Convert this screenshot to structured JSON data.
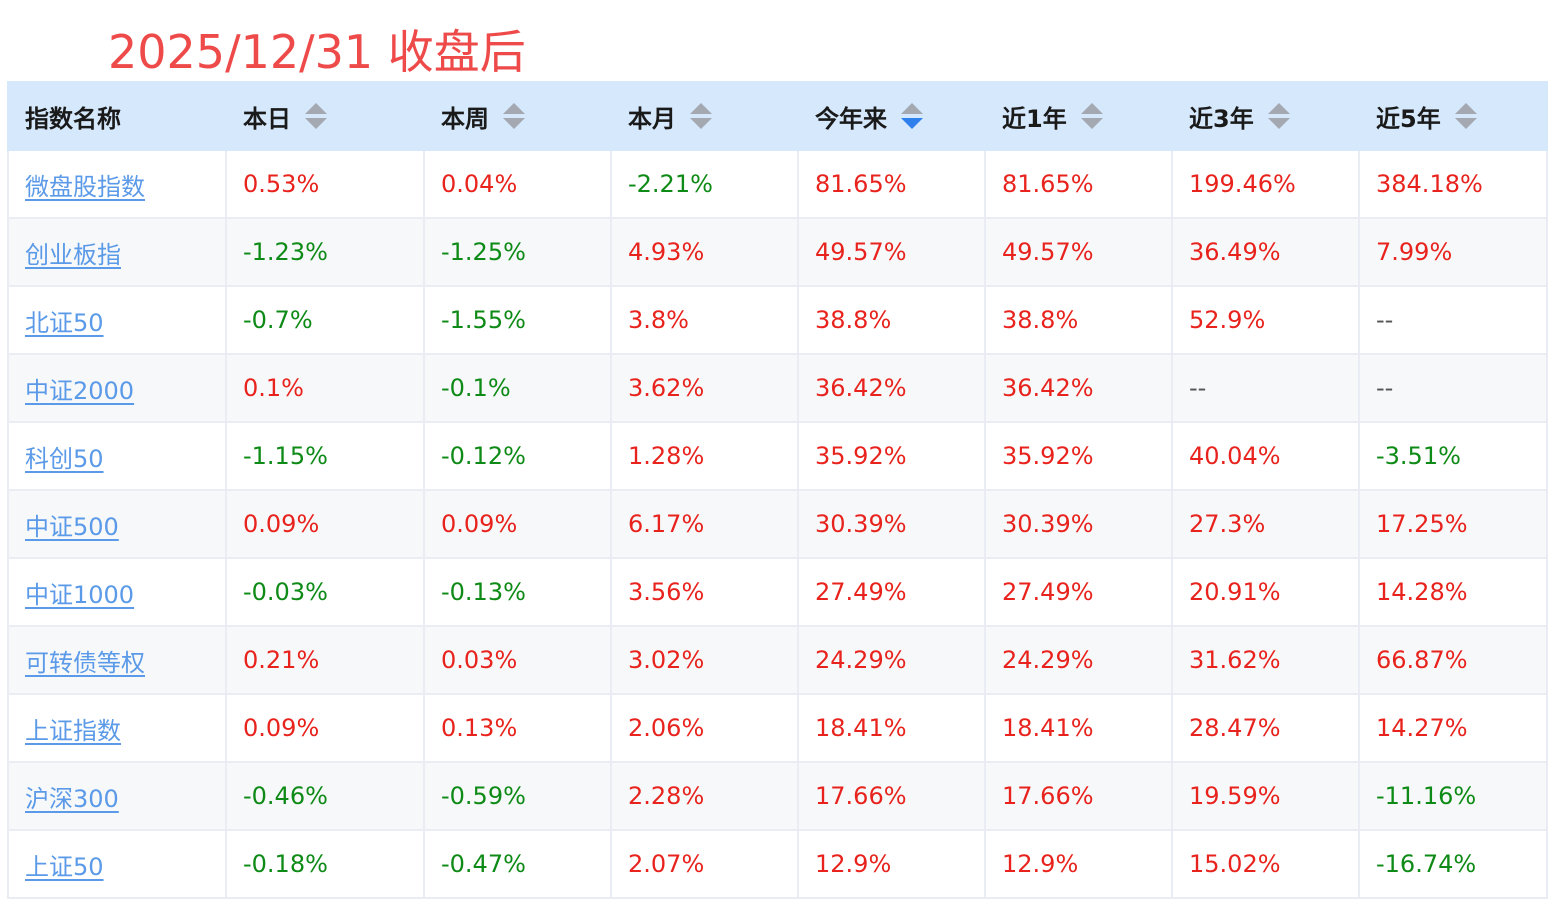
{
  "caption": "2025/12/31 收盘后",
  "headers": [
    {
      "label": "指数名称",
      "sortable": false
    },
    {
      "label": "本日",
      "sortable": true,
      "sort": "none"
    },
    {
      "label": "本周",
      "sortable": true,
      "sort": "none"
    },
    {
      "label": "本月",
      "sortable": true,
      "sort": "none"
    },
    {
      "label": "今年来",
      "sortable": true,
      "sort": "desc"
    },
    {
      "label": "近1年",
      "sortable": true,
      "sort": "none"
    },
    {
      "label": "近3年",
      "sortable": true,
      "sort": "none"
    },
    {
      "label": "近5年",
      "sortable": true,
      "sort": "none"
    }
  ],
  "colors": {
    "positive": "#e8231d",
    "negative": "#0e8a16",
    "link": "#5b9ae8",
    "caption": "#ee4a4a",
    "header_bg": "#d5e8fc",
    "sort_active": "#2f80ed"
  },
  "rows": [
    {
      "name": "微盘股指数",
      "values": [
        "0.53%",
        "0.04%",
        "-2.21%",
        "81.65%",
        "81.65%",
        "199.46%",
        "384.18%"
      ]
    },
    {
      "name": "创业板指",
      "values": [
        "-1.23%",
        "-1.25%",
        "4.93%",
        "49.57%",
        "49.57%",
        "36.49%",
        "7.99%"
      ]
    },
    {
      "name": "北证50",
      "values": [
        "-0.7%",
        "-1.55%",
        "3.8%",
        "38.8%",
        "38.8%",
        "52.9%",
        "--"
      ]
    },
    {
      "name": "中证2000",
      "values": [
        "0.1%",
        "-0.1%",
        "3.62%",
        "36.42%",
        "36.42%",
        "--",
        "--"
      ]
    },
    {
      "name": "科创50",
      "values": [
        "-1.15%",
        "-0.12%",
        "1.28%",
        "35.92%",
        "35.92%",
        "40.04%",
        "-3.51%"
      ]
    },
    {
      "name": "中证500",
      "values": [
        "0.09%",
        "0.09%",
        "6.17%",
        "30.39%",
        "30.39%",
        "27.3%",
        "17.25%"
      ]
    },
    {
      "name": "中证1000",
      "values": [
        "-0.03%",
        "-0.13%",
        "3.56%",
        "27.49%",
        "27.49%",
        "20.91%",
        "14.28%"
      ]
    },
    {
      "name": "可转债等权",
      "values": [
        "0.21%",
        "0.03%",
        "3.02%",
        "24.29%",
        "24.29%",
        "31.62%",
        "66.87%"
      ]
    },
    {
      "name": "上证指数",
      "values": [
        "0.09%",
        "0.13%",
        "2.06%",
        "18.41%",
        "18.41%",
        "28.47%",
        "14.27%"
      ]
    },
    {
      "name": "沪深300",
      "values": [
        "-0.46%",
        "-0.59%",
        "2.28%",
        "17.66%",
        "17.66%",
        "19.59%",
        "-11.16%"
      ]
    },
    {
      "name": "上证50",
      "values": [
        "-0.18%",
        "-0.47%",
        "2.07%",
        "12.9%",
        "12.9%",
        "15.02%",
        "-16.74%"
      ]
    }
  ]
}
